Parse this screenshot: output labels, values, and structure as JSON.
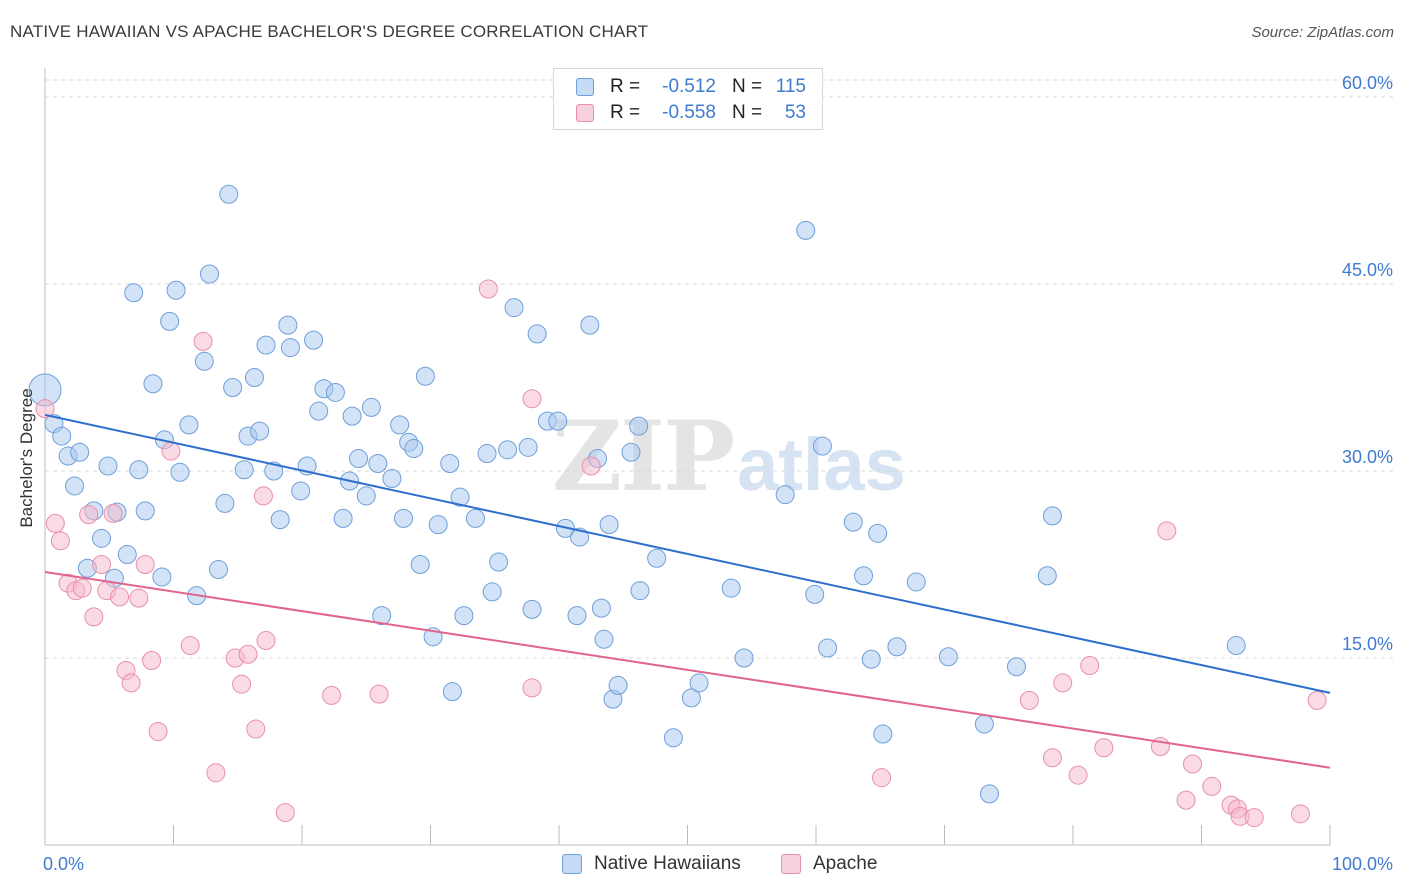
{
  "title": "NATIVE HAWAIIAN VS APACHE BACHELOR'S DEGREE CORRELATION CHART",
  "source": "Source: ZipAtlas.com",
  "watermark": {
    "part1": "ZIP",
    "part2": "atlas"
  },
  "legend": {
    "rows": [
      {
        "r_label": "R =",
        "r_value": "-0.512",
        "n_label": "N =",
        "n_value": "115",
        "color": "#a8c8f0"
      },
      {
        "r_label": "R =",
        "r_value": "-0.558",
        "n_label": "N =",
        "n_value": "53",
        "color": "#f5b8cb"
      }
    ]
  },
  "bottom_legend": [
    "Native Hawaiians",
    "Apache"
  ],
  "chart_data": {
    "type": "scatter",
    "xlabel": "",
    "ylabel": "Bachelor's Degree",
    "xlim": [
      0,
      100
    ],
    "ylim": [
      0,
      60
    ],
    "x_tick_labels": [
      "0.0%",
      "100.0%"
    ],
    "y_ticks": [
      15,
      30,
      45,
      60
    ],
    "y_tick_labels": [
      "15.0%",
      "30.0%",
      "45.0%",
      "60.0%"
    ],
    "grid": "horizontal dashed",
    "legend_placement": "top-center",
    "colors": {
      "blue_fill": "#a8c8f0",
      "blue_stroke": "#6f9fd8",
      "blue_line": "#2e6fce",
      "pink_fill": "#f5b8cb",
      "pink_stroke": "#e890aa",
      "pink_line": "#e0648e",
      "tick_label": "#3f7bd0"
    },
    "series": [
      {
        "name": "Native Hawaiians",
        "trend": [
          [
            0,
            34.5
          ],
          [
            100,
            12.2
          ]
        ],
        "points": [
          [
            0.0,
            36.5
          ],
          [
            0.7,
            33.8
          ],
          [
            1.3,
            32.8
          ],
          [
            1.8,
            31.2
          ],
          [
            2.3,
            28.8
          ],
          [
            2.7,
            31.5
          ],
          [
            3.3,
            22.2
          ],
          [
            3.8,
            26.8
          ],
          [
            4.4,
            24.6
          ],
          [
            4.9,
            30.4
          ],
          [
            5.4,
            21.4
          ],
          [
            5.6,
            26.7
          ],
          [
            6.4,
            23.3
          ],
          [
            6.9,
            44.3
          ],
          [
            7.3,
            30.1
          ],
          [
            7.8,
            26.8
          ],
          [
            8.4,
            37.0
          ],
          [
            9.1,
            21.5
          ],
          [
            9.3,
            32.5
          ],
          [
            9.7,
            42.0
          ],
          [
            10.2,
            44.5
          ],
          [
            10.5,
            29.9
          ],
          [
            11.2,
            33.7
          ],
          [
            11.8,
            20.0
          ],
          [
            12.4,
            38.8
          ],
          [
            12.8,
            45.8
          ],
          [
            13.5,
            22.1
          ],
          [
            14.0,
            27.4
          ],
          [
            14.3,
            52.2
          ],
          [
            14.6,
            36.7
          ],
          [
            15.5,
            30.1
          ],
          [
            15.8,
            32.8
          ],
          [
            16.3,
            37.5
          ],
          [
            16.7,
            33.2
          ],
          [
            17.2,
            40.1
          ],
          [
            17.8,
            30.0
          ],
          [
            18.3,
            26.1
          ],
          [
            18.9,
            41.7
          ],
          [
            19.1,
            39.9
          ],
          [
            19.9,
            28.4
          ],
          [
            20.4,
            30.4
          ],
          [
            20.9,
            40.5
          ],
          [
            21.3,
            34.8
          ],
          [
            21.7,
            36.6
          ],
          [
            22.6,
            36.3
          ],
          [
            23.2,
            26.2
          ],
          [
            23.7,
            29.2
          ],
          [
            23.9,
            34.4
          ],
          [
            24.4,
            31.0
          ],
          [
            25.0,
            28.0
          ],
          [
            25.4,
            35.1
          ],
          [
            25.9,
            30.6
          ],
          [
            26.2,
            18.4
          ],
          [
            27.0,
            29.4
          ],
          [
            27.6,
            33.7
          ],
          [
            27.9,
            26.2
          ],
          [
            28.3,
            32.3
          ],
          [
            28.7,
            31.8
          ],
          [
            29.2,
            22.5
          ],
          [
            29.6,
            37.6
          ],
          [
            30.2,
            16.7
          ],
          [
            30.6,
            25.7
          ],
          [
            31.5,
            30.6
          ],
          [
            31.7,
            12.3
          ],
          [
            32.3,
            27.9
          ],
          [
            32.6,
            18.4
          ],
          [
            33.5,
            26.2
          ],
          [
            34.4,
            31.4
          ],
          [
            34.8,
            20.3
          ],
          [
            35.3,
            22.7
          ],
          [
            36.0,
            31.7
          ],
          [
            36.5,
            43.1
          ],
          [
            37.6,
            31.9
          ],
          [
            37.9,
            18.9
          ],
          [
            38.3,
            41.0
          ],
          [
            39.1,
            34.0
          ],
          [
            39.9,
            34.0
          ],
          [
            40.5,
            25.4
          ],
          [
            41.4,
            18.4
          ],
          [
            41.6,
            24.7
          ],
          [
            42.4,
            41.7
          ],
          [
            43.0,
            31.0
          ],
          [
            43.3,
            19.0
          ],
          [
            43.5,
            16.5
          ],
          [
            43.9,
            25.7
          ],
          [
            44.2,
            11.7
          ],
          [
            44.6,
            12.8
          ],
          [
            45.6,
            31.5
          ],
          [
            46.2,
            33.6
          ],
          [
            46.3,
            20.4
          ],
          [
            47.6,
            23.0
          ],
          [
            48.9,
            8.6
          ],
          [
            50.3,
            11.8
          ],
          [
            50.9,
            13.0
          ],
          [
            53.4,
            20.6
          ],
          [
            54.4,
            15.0
          ],
          [
            57.6,
            28.1
          ],
          [
            59.2,
            49.3
          ],
          [
            59.9,
            20.1
          ],
          [
            60.5,
            32.0
          ],
          [
            60.9,
            15.8
          ],
          [
            62.9,
            25.9
          ],
          [
            63.7,
            21.6
          ],
          [
            64.3,
            14.9
          ],
          [
            64.8,
            25.0
          ],
          [
            65.2,
            8.9
          ],
          [
            66.3,
            15.9
          ],
          [
            67.8,
            21.1
          ],
          [
            70.3,
            15.1
          ],
          [
            73.1,
            9.7
          ],
          [
            73.5,
            4.1
          ],
          [
            75.6,
            14.3
          ],
          [
            78.0,
            21.6
          ],
          [
            78.4,
            26.4
          ],
          [
            92.7,
            16.0
          ]
        ]
      },
      {
        "name": "Apache",
        "trend": [
          [
            0,
            21.9
          ],
          [
            100,
            6.2
          ]
        ],
        "points": [
          [
            0.0,
            35.0
          ],
          [
            0.8,
            25.8
          ],
          [
            1.2,
            24.4
          ],
          [
            1.8,
            21.0
          ],
          [
            2.4,
            20.4
          ],
          [
            2.9,
            20.6
          ],
          [
            3.4,
            26.5
          ],
          [
            3.8,
            18.3
          ],
          [
            4.4,
            22.5
          ],
          [
            4.8,
            20.4
          ],
          [
            5.3,
            26.6
          ],
          [
            5.8,
            19.9
          ],
          [
            6.3,
            14.0
          ],
          [
            6.7,
            13.0
          ],
          [
            7.3,
            19.8
          ],
          [
            7.8,
            22.5
          ],
          [
            8.3,
            14.8
          ],
          [
            8.8,
            9.1
          ],
          [
            9.8,
            31.6
          ],
          [
            11.3,
            16.0
          ],
          [
            12.3,
            40.4
          ],
          [
            13.3,
            5.8
          ],
          [
            14.8,
            15.0
          ],
          [
            15.3,
            12.9
          ],
          [
            15.8,
            15.3
          ],
          [
            16.4,
            9.3
          ],
          [
            17.0,
            28.0
          ],
          [
            17.2,
            16.4
          ],
          [
            18.7,
            2.6
          ],
          [
            22.3,
            12.0
          ],
          [
            26.0,
            12.1
          ],
          [
            34.5,
            44.6
          ],
          [
            37.9,
            12.6
          ],
          [
            37.9,
            35.8
          ],
          [
            42.5,
            30.4
          ],
          [
            65.1,
            5.4
          ],
          [
            76.6,
            11.6
          ],
          [
            78.4,
            7.0
          ],
          [
            79.2,
            13.0
          ],
          [
            80.4,
            5.6
          ],
          [
            81.3,
            14.4
          ],
          [
            82.4,
            7.8
          ],
          [
            86.8,
            7.9
          ],
          [
            87.3,
            25.2
          ],
          [
            88.8,
            3.6
          ],
          [
            89.3,
            6.5
          ],
          [
            90.8,
            4.7
          ],
          [
            92.3,
            3.2
          ],
          [
            92.8,
            2.9
          ],
          [
            93.0,
            2.3
          ],
          [
            94.1,
            2.2
          ],
          [
            97.7,
            2.5
          ],
          [
            99.0,
            11.6
          ]
        ]
      }
    ]
  }
}
